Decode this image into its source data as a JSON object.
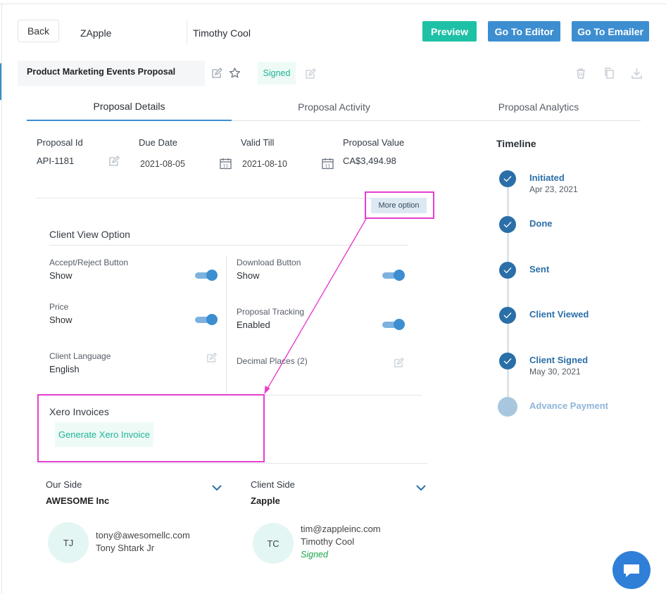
{
  "header": {
    "back_label": "Back",
    "company": "ZApple",
    "contact": "Timothy Cool",
    "preview_label": "Preview",
    "editor_label": "Go To Editor",
    "emailer_label": "Go To Emailer"
  },
  "proposal": {
    "title": "Product Marketing Events Proposal",
    "status": "Signed"
  },
  "tabs": [
    {
      "label": "Proposal Details",
      "active": true
    },
    {
      "label": "Proposal Activity",
      "active": false
    },
    {
      "label": "Proposal Analytics",
      "active": false
    }
  ],
  "details": {
    "id_label": "Proposal Id",
    "id_value": "API-1181",
    "due_label": "Due Date",
    "due_value": "2021-08-05",
    "valid_label": "Valid Till",
    "valid_value": "2021-08-10",
    "value_label": "Proposal Value",
    "value_value": "CA$3,494.98",
    "more_option": "More option"
  },
  "client_view": {
    "title": "Client View Option",
    "accept_label": "Accept/Reject Button",
    "accept_value": "Show",
    "price_label": "Price",
    "price_value": "Show",
    "language_label": "Client Language",
    "language_value": "English",
    "download_label": "Download Button",
    "download_value": "Show",
    "tracking_label": "Proposal Tracking",
    "tracking_value": "Enabled",
    "decimal_label": "Decimal Places (2)"
  },
  "xero": {
    "title": "Xero Invoices",
    "button": "Generate Xero Invoice"
  },
  "our_side": {
    "label": "Our Side",
    "company": "AWESOME Inc",
    "initials": "TJ",
    "email": "tony@awesomellc.com",
    "name": "Tony Shtark  Jr"
  },
  "client_side": {
    "label": "Client Side",
    "company": "Zapple",
    "initials": "TC",
    "email": "tim@zappleinc.com",
    "name": "Timothy Cool",
    "status": "Signed"
  },
  "timeline": {
    "title": "Timeline",
    "steps": [
      {
        "label": "Initiated",
        "date": "Apr 23, 2021",
        "done": true
      },
      {
        "label": "Done",
        "date": "",
        "done": true
      },
      {
        "label": "Sent",
        "date": "",
        "done": true
      },
      {
        "label": "Client Viewed",
        "date": "",
        "done": true
      },
      {
        "label": "Client Signed",
        "date": "May 30, 2021",
        "done": true
      },
      {
        "label": "Advance Payment",
        "date": "",
        "done": false
      }
    ]
  },
  "colors": {
    "accent_blue": "#3d8ed1",
    "accent_green": "#1fc1a6",
    "annotation_magenta": "#e63fd0",
    "timeline_blue": "#2a6fa8"
  }
}
